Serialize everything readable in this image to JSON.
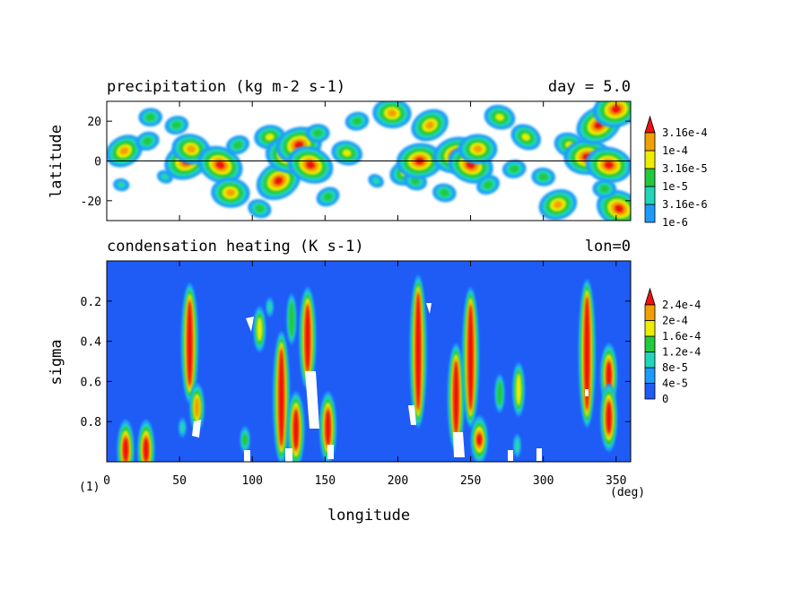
{
  "panels": {
    "top": {
      "title_left": "precipitation (kg m-2 s-1)",
      "title_right": "day = 5.0",
      "ylabel": "latitude"
    },
    "bottom": {
      "title_left": "condensation heating (K s-1)",
      "title_right": "lon=0",
      "ylabel": "sigma"
    }
  },
  "xaxis": {
    "label": "longitude",
    "unit": "(deg)",
    "figure_number": "(1)"
  },
  "colors": {
    "level1": "#1b9cfc",
    "level2": "#20d6b8",
    "level3": "#22c93c",
    "level4": "#eded00",
    "level5": "#f0a000",
    "level6": "#f01010",
    "background_bottom": "#1f5cf5"
  },
  "chart_data": [
    {
      "type": "heatmap",
      "title": "precipitation (kg m-2 s-1)",
      "annotation": "day = 5.0",
      "xlabel": "longitude",
      "ylabel": "latitude",
      "xlim": [
        0,
        360
      ],
      "ylim": [
        -30,
        30
      ],
      "xticks": [
        0,
        50,
        100,
        150,
        200,
        250,
        300,
        350
      ],
      "yticks": [
        -20,
        0,
        20
      ],
      "colorbar": {
        "levels": [
          "1e-6",
          "3.16e-6",
          "1e-5",
          "3.16e-5",
          "1e-4",
          "3.16e-4"
        ],
        "extend": "max"
      },
      "equator_line": 0,
      "blobs": [
        {
          "lon": 12,
          "lat": 5,
          "level": 5
        },
        {
          "lon": 10,
          "lat": -12,
          "level": 2
        },
        {
          "lon": 28,
          "lat": 10,
          "level": 3
        },
        {
          "lon": 40,
          "lat": -8,
          "level": 2
        },
        {
          "lon": 30,
          "lat": 22,
          "level": 3
        },
        {
          "lon": 55,
          "lat": 0,
          "level": 6
        },
        {
          "lon": 58,
          "lat": 6,
          "level": 5
        },
        {
          "lon": 48,
          "lat": 18,
          "level": 3
        },
        {
          "lon": 78,
          "lat": -2,
          "level": 6
        },
        {
          "lon": 85,
          "lat": -16,
          "level": 5
        },
        {
          "lon": 90,
          "lat": 8,
          "level": 3
        },
        {
          "lon": 105,
          "lat": -24,
          "level": 3
        },
        {
          "lon": 112,
          "lat": 12,
          "level": 4
        },
        {
          "lon": 118,
          "lat": -10,
          "level": 6
        },
        {
          "lon": 125,
          "lat": 3,
          "level": 6
        },
        {
          "lon": 132,
          "lat": 8,
          "level": 6
        },
        {
          "lon": 140,
          "lat": -2,
          "level": 6
        },
        {
          "lon": 145,
          "lat": 14,
          "level": 3
        },
        {
          "lon": 152,
          "lat": -18,
          "level": 3
        },
        {
          "lon": 165,
          "lat": 4,
          "level": 4
        },
        {
          "lon": 172,
          "lat": 20,
          "level": 3
        },
        {
          "lon": 185,
          "lat": -10,
          "level": 2
        },
        {
          "lon": 196,
          "lat": 24,
          "level": 5
        },
        {
          "lon": 205,
          "lat": -6,
          "level": 4
        },
        {
          "lon": 212,
          "lat": -10,
          "level": 3
        },
        {
          "lon": 215,
          "lat": 0,
          "level": 6
        },
        {
          "lon": 222,
          "lat": 18,
          "level": 5
        },
        {
          "lon": 232,
          "lat": -16,
          "level": 3
        },
        {
          "lon": 240,
          "lat": 3,
          "level": 6
        },
        {
          "lon": 250,
          "lat": -2,
          "level": 6
        },
        {
          "lon": 255,
          "lat": 6,
          "level": 5
        },
        {
          "lon": 262,
          "lat": -12,
          "level": 3
        },
        {
          "lon": 270,
          "lat": 22,
          "level": 4
        },
        {
          "lon": 280,
          "lat": -4,
          "level": 3
        },
        {
          "lon": 288,
          "lat": 12,
          "level": 4
        },
        {
          "lon": 300,
          "lat": -8,
          "level": 3
        },
        {
          "lon": 310,
          "lat": -22,
          "level": 5
        },
        {
          "lon": 318,
          "lat": 8,
          "level": 4
        },
        {
          "lon": 330,
          "lat": 2,
          "level": 6
        },
        {
          "lon": 338,
          "lat": 18,
          "level": 6
        },
        {
          "lon": 345,
          "lat": -2,
          "level": 6
        },
        {
          "lon": 350,
          "lat": 26,
          "level": 6
        },
        {
          "lon": 352,
          "lat": -24,
          "level": 6
        },
        {
          "lon": 342,
          "lat": -14,
          "level": 3
        }
      ]
    },
    {
      "type": "heatmap",
      "title": "condensation heating (K s-1)",
      "annotation": "lon=0",
      "xlabel": "longitude",
      "ylabel": "sigma",
      "xlim": [
        0,
        360
      ],
      "ylim": [
        1.0,
        0.0
      ],
      "xticks": [
        0,
        50,
        100,
        150,
        200,
        250,
        300,
        350
      ],
      "yticks": [
        0.2,
        0.4,
        0.6,
        0.8
      ],
      "colorbar": {
        "levels": [
          "0",
          "4e-5",
          "8e-5",
          "1.2e-4",
          "1.6e-4",
          "2e-4",
          "2.4e-4"
        ],
        "extend": "max"
      },
      "columns": [
        {
          "lon": 13,
          "sigma_top": 0.88,
          "sigma_bottom": 1.0,
          "level": 6
        },
        {
          "lon": 27,
          "sigma_top": 0.88,
          "sigma_bottom": 1.0,
          "level": 6
        },
        {
          "lon": 52,
          "sigma_top": 0.8,
          "sigma_bottom": 0.86,
          "level": 2
        },
        {
          "lon": 57,
          "sigma_top": 0.2,
          "sigma_bottom": 0.62,
          "level": 6
        },
        {
          "lon": 62,
          "sigma_top": 0.68,
          "sigma_bottom": 0.78,
          "level": 5
        },
        {
          "lon": 95,
          "sigma_top": 0.86,
          "sigma_bottom": 0.92,
          "level": 3
        },
        {
          "lon": 105,
          "sigma_top": 0.28,
          "sigma_bottom": 0.4,
          "level": 4
        },
        {
          "lon": 112,
          "sigma_top": 0.2,
          "sigma_bottom": 0.26,
          "level": 2
        },
        {
          "lon": 120,
          "sigma_top": 0.44,
          "sigma_bottom": 0.92,
          "level": 6
        },
        {
          "lon": 127,
          "sigma_top": 0.2,
          "sigma_bottom": 0.38,
          "level": 3
        },
        {
          "lon": 130,
          "sigma_top": 0.74,
          "sigma_bottom": 0.94,
          "level": 6
        },
        {
          "lon": 138,
          "sigma_top": 0.22,
          "sigma_bottom": 0.55,
          "level": 6
        },
        {
          "lon": 152,
          "sigma_top": 0.74,
          "sigma_bottom": 0.92,
          "level": 6
        },
        {
          "lon": 214,
          "sigma_top": 0.16,
          "sigma_bottom": 0.74,
          "level": 6
        },
        {
          "lon": 240,
          "sigma_top": 0.5,
          "sigma_bottom": 0.86,
          "level": 6
        },
        {
          "lon": 250,
          "sigma_top": 0.22,
          "sigma_bottom": 0.74,
          "level": 6
        },
        {
          "lon": 256,
          "sigma_top": 0.86,
          "sigma_bottom": 0.92,
          "level": 6
        },
        {
          "lon": 270,
          "sigma_top": 0.6,
          "sigma_bottom": 0.72,
          "level": 3
        },
        {
          "lon": 283,
          "sigma_top": 0.56,
          "sigma_bottom": 0.72,
          "level": 4
        },
        {
          "lon": 282,
          "sigma_top": 0.88,
          "sigma_bottom": 0.96,
          "level": 2
        },
        {
          "lon": 330,
          "sigma_top": 0.18,
          "sigma_bottom": 0.74,
          "level": 6
        },
        {
          "lon": 345,
          "sigma_top": 0.5,
          "sigma_bottom": 0.64,
          "level": 6
        },
        {
          "lon": 345,
          "sigma_top": 0.7,
          "sigma_bottom": 0.86,
          "level": 6
        }
      ]
    }
  ]
}
